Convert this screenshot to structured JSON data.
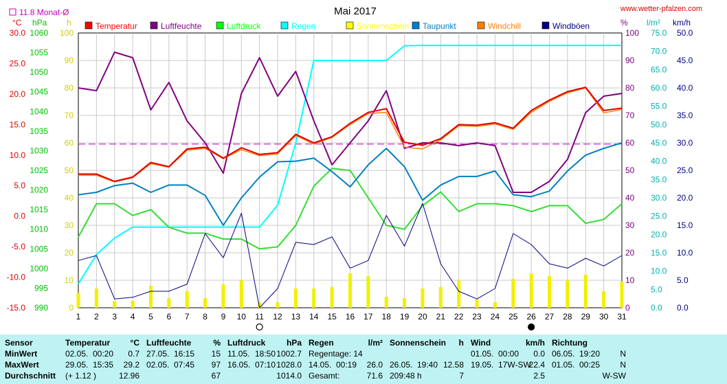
{
  "chart_data": {
    "type": "line",
    "title": "Mai 2017",
    "site": "www.wetter-pfalzen.com",
    "monthly_avg_label": "11.8 Monat-Ø",
    "monthly_avg_temp": 11.8,
    "x": [
      1,
      2,
      3,
      4,
      5,
      6,
      7,
      8,
      9,
      10,
      11,
      12,
      13,
      14,
      15,
      16,
      17,
      18,
      19,
      20,
      21,
      22,
      23,
      24,
      25,
      26,
      27,
      28,
      29,
      30,
      31
    ],
    "xlim": [
      1,
      31
    ],
    "moon_new_day": 11,
    "moon_full_day": 26,
    "axes": {
      "temp": {
        "unit": "°C",
        "ylim": [
          -15,
          30
        ],
        "ticks": [
          "30.0",
          "25.0",
          "20.0",
          "15.0",
          "10.0",
          "5.0",
          "0.0",
          "-5.0",
          "-10.0",
          "-15.0"
        ],
        "color": "#e00000"
      },
      "pressure": {
        "unit": "hPa",
        "ylim": [
          990,
          1060
        ],
        "ticks": [
          "1060",
          "1055",
          "1050",
          "1045",
          "1040",
          "1035",
          "1030",
          "1025",
          "1020",
          "1015",
          "1010",
          "1005",
          "1000",
          "995",
          "990"
        ],
        "color": "#00c000"
      },
      "sun": {
        "unit": "h",
        "ylim": [
          0,
          100
        ],
        "ticks": [
          "100",
          "90",
          "80",
          "70",
          "60",
          "50",
          "40",
          "30",
          "20",
          "10",
          "0"
        ],
        "color": "#d8d800"
      },
      "humidity": {
        "unit": "%",
        "ylim": [
          0,
          100
        ],
        "ticks": [
          "100",
          "90",
          "80",
          "70",
          "60",
          "50",
          "40",
          "30",
          "20",
          "10",
          "0"
        ],
        "color": "#800080"
      },
      "rain": {
        "unit": "l/m²",
        "ylim": [
          0,
          75
        ],
        "ticks": [
          "75.0",
          "70.0",
          "65.0",
          "60.0",
          "55.0",
          "50.0",
          "45.0",
          "40.0",
          "35.0",
          "30.0",
          "25.0",
          "20.0",
          "15.0",
          "10.0",
          "5.0",
          "0.0"
        ],
        "color": "#00c0c0"
      },
      "wind": {
        "unit": "km/h",
        "ylim": [
          0,
          50
        ],
        "ticks": [
          "50.0",
          "45.0",
          "40.0",
          "35.0",
          "30.0",
          "25.0",
          "20.0",
          "15.0",
          "10.0",
          "5.0",
          "0.0"
        ],
        "color": "#000080"
      }
    },
    "legend": [
      {
        "name": "Temperatur",
        "color": "#ff0000"
      },
      {
        "name": "Luftfeuchte",
        "color": "#800080"
      },
      {
        "name": "Luftdruck",
        "color": "#00ff00"
      },
      {
        "name": "Regen",
        "color": "#00ffff"
      },
      {
        "name": "Sonnenschein",
        "color": "#ffff00"
      },
      {
        "name": "Taupunkt",
        "color": "#0080c0"
      },
      {
        "name": "Windchill",
        "color": "#ff8000"
      },
      {
        "name": "Windböen",
        "color": "#000080"
      }
    ],
    "series": [
      {
        "name": "Temperatur",
        "axis": "temp",
        "color": "#e00000",
        "width": 2,
        "values": [
          6.9,
          6.9,
          5.7,
          6.4,
          8.8,
          8.1,
          11.0,
          11.3,
          9.5,
          11.2,
          10.1,
          10.4,
          13.4,
          12.0,
          13.0,
          15.2,
          17.0,
          17.6,
          12.1,
          11.6,
          12.7,
          15.0,
          14.9,
          15.3,
          14.4,
          17.3,
          19.0,
          20.4,
          21.1,
          17.3,
          17.7
        ]
      },
      {
        "name": "Windchill",
        "axis": "temp",
        "color": "#ff8000",
        "width": 1.5,
        "values": [
          6.7,
          6.7,
          5.6,
          6.3,
          8.6,
          8.0,
          10.8,
          11.1,
          9.4,
          10.9,
          9.9,
          10.2,
          13.2,
          11.8,
          12.9,
          15.0,
          16.8,
          17.0,
          11.3,
          11.0,
          12.5,
          14.8,
          14.7,
          15.1,
          14.2,
          17.0,
          18.8,
          20.2,
          21.0,
          16.9,
          17.5
        ]
      },
      {
        "name": "Taupunkt",
        "axis": "temp",
        "color": "#0080c0",
        "width": 2,
        "values": [
          3.5,
          3.9,
          5.0,
          5.4,
          3.9,
          5.1,
          5.1,
          3.4,
          -1.5,
          3.0,
          6.4,
          8.9,
          9.0,
          9.5,
          7.3,
          4.8,
          8.4,
          11.1,
          8.1,
          2.6,
          5.1,
          6.5,
          6.5,
          7.4,
          3.5,
          3.2,
          4.1,
          7.4,
          10.0,
          11.1,
          12.0
        ]
      },
      {
        "name": "Luftfeuchte",
        "axis": "humidity",
        "color": "#800080",
        "width": 2,
        "values": [
          80,
          79,
          93,
          91,
          72,
          82,
          68,
          60,
          49,
          78,
          91,
          77,
          86,
          68,
          52,
          60,
          68,
          79,
          58,
          60,
          60,
          59,
          60,
          59,
          42,
          42,
          46,
          54,
          71,
          77,
          78
        ]
      },
      {
        "name": "Luftdruck",
        "axis": "pressure",
        "color": "#33dd33",
        "width": 2,
        "values": [
          1008.0,
          1016.5,
          1016.5,
          1013.5,
          1015.0,
          1010.5,
          1009.0,
          1009.0,
          1007.5,
          1007.5,
          1005.0,
          1005.5,
          1011.0,
          1021.0,
          1025.5,
          1025.0,
          1018.0,
          1011.0,
          1010.0,
          1016.0,
          1019.5,
          1014.5,
          1016.5,
          1016.5,
          1016.0,
          1014.5,
          1016.0,
          1016.0,
          1011.5,
          1012.5,
          1016.5
        ]
      },
      {
        "name": "Regen",
        "axis": "rain",
        "color": "#00ffff",
        "width": 2,
        "values": [
          6.5,
          14.5,
          19.0,
          22.0,
          22.0,
          22.0,
          22.0,
          22.0,
          22.0,
          22.0,
          22.0,
          28.0,
          45.0,
          67.5,
          67.5,
          67.5,
          67.5,
          67.5,
          71.5,
          71.6,
          71.6,
          71.6,
          71.6,
          71.6,
          71.6,
          71.6,
          71.6,
          71.6,
          71.6,
          71.6,
          71.6
        ]
      },
      {
        "name": "Windböen",
        "axis": "wind",
        "color": "#000080",
        "width": 1,
        "values": [
          8.6,
          9.5,
          1.6,
          1.9,
          3.0,
          3.0,
          4.3,
          13.5,
          9.1,
          17.2,
          0.0,
          3.5,
          11.9,
          11.5,
          12.9,
          7.2,
          8.6,
          16.8,
          11.2,
          19.0,
          8.0,
          3.0,
          1.6,
          3.5,
          13.5,
          11.5,
          8.0,
          7.2,
          9.0,
          7.6,
          9.5
        ]
      },
      {
        "name": "Sonnenschein",
        "axis": "sun",
        "type": "bar",
        "color": "#f0f000",
        "values": [
          5.5,
          7.0,
          2.5,
          2.5,
          8.0,
          3.5,
          6.0,
          3.5,
          8.5,
          10.0,
          2.0,
          2.0,
          7.0,
          7.0,
          7.5,
          12.5,
          11.5,
          4.0,
          3.5,
          7.0,
          7.5,
          10.0,
          3.0,
          2.0,
          10.5,
          12.5,
          11.5,
          10.0,
          12.0,
          6.0,
          9.5
        ]
      }
    ],
    "grid": true,
    "legend_position": "top"
  },
  "summary_table": {
    "sections": [
      {
        "key": "sensor",
        "header": "Sensor",
        "unit": "",
        "rows": [
          [
            "MinWert"
          ],
          [
            "MaxWert"
          ],
          [
            "Durchschnitt"
          ]
        ]
      },
      {
        "key": "temp",
        "header": "Temperatur",
        "unit": "°C",
        "rows": [
          [
            "02.05.",
            "00:20",
            "0.7"
          ],
          [
            "29.05.",
            "15:35",
            "29.2"
          ],
          [
            "(+ 1.12 )",
            "",
            "12.96"
          ]
        ]
      },
      {
        "key": "humidity",
        "header": "Luftfeuchte",
        "unit": "%",
        "rows": [
          [
            "27.05.",
            "16:15",
            "15"
          ],
          [
            "02.05.",
            "07:45",
            "97"
          ],
          [
            "",
            "",
            "67"
          ]
        ]
      },
      {
        "key": "pressure",
        "header": "Luftdruck",
        "unit": "hPa",
        "rows": [
          [
            "11.05.",
            "18:50",
            "1002.7"
          ],
          [
            "16.05.",
            "07:10",
            "1028.0"
          ],
          [
            "",
            "",
            "1014.0"
          ]
        ]
      },
      {
        "key": "rain",
        "header": "Regen",
        "unit": "l/m²",
        "rows": [
          [
            "Regentage: 14",
            "",
            ""
          ],
          [
            "14.05.",
            "00:19",
            "26.0"
          ],
          [
            "Gesamt:",
            "",
            "71.6"
          ]
        ]
      },
      {
        "key": "sun",
        "header": "Sonnenschein",
        "unit": "h",
        "rows": [
          [
            "",
            "",
            ""
          ],
          [
            "26.05.",
            "19:40",
            "12.58"
          ],
          [
            "209:48 h",
            "",
            "7"
          ]
        ]
      },
      {
        "key": "wind",
        "header": "Wind",
        "unit": "km/h",
        "rows": [
          [
            "01.05.",
            "00:00",
            "0.0"
          ],
          [
            "19.05.",
            "17W-SW",
            "22.4"
          ],
          [
            "",
            "",
            "2.5"
          ]
        ]
      },
      {
        "key": "direction",
        "header": "Richtung",
        "unit": "",
        "rows": [
          [
            "06.05.",
            "19:20",
            "N"
          ],
          [
            "01.05.",
            "00:25",
            "N"
          ],
          [
            "",
            "",
            "W-SW"
          ]
        ]
      }
    ]
  }
}
